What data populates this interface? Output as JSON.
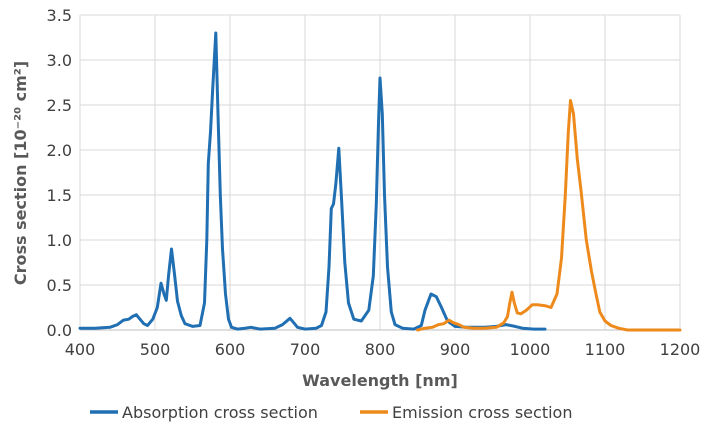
{
  "chart_data": {
    "type": "line",
    "xlabel": "Wavelength [nm]",
    "ylabel": "Cross section [10⁻²⁰ cm²]",
    "xlim": [
      400,
      1200
    ],
    "ylim": [
      0,
      3.5
    ],
    "x_ticks": [
      "400",
      "500",
      "600",
      "700",
      "800",
      "900",
      "1000",
      "1100",
      "1200"
    ],
    "y_ticks": [
      "0.0",
      "0.5",
      "1.0",
      "1.5",
      "2.0",
      "2.5",
      "3.0",
      "3.5"
    ],
    "grid": true,
    "legend_position": "bottom",
    "series": [
      {
        "name": "Absorption cross section",
        "color": "#1f6fb2",
        "points": [
          [
            400,
            0.02
          ],
          [
            420,
            0.02
          ],
          [
            440,
            0.03
          ],
          [
            450,
            0.06
          ],
          [
            458,
            0.11
          ],
          [
            465,
            0.12
          ],
          [
            470,
            0.15
          ],
          [
            475,
            0.17
          ],
          [
            478,
            0.14
          ],
          [
            485,
            0.07
          ],
          [
            490,
            0.05
          ],
          [
            497,
            0.12
          ],
          [
            503,
            0.25
          ],
          [
            508,
            0.52
          ],
          [
            512,
            0.4
          ],
          [
            515,
            0.33
          ],
          [
            518,
            0.6
          ],
          [
            522,
            0.9
          ],
          [
            526,
            0.62
          ],
          [
            530,
            0.32
          ],
          [
            535,
            0.16
          ],
          [
            540,
            0.07
          ],
          [
            550,
            0.04
          ],
          [
            560,
            0.05
          ],
          [
            566,
            0.3
          ],
          [
            569,
            1.0
          ],
          [
            571,
            1.85
          ],
          [
            574,
            2.2
          ],
          [
            577,
            2.7
          ],
          [
            581,
            3.3
          ],
          [
            584,
            2.4
          ],
          [
            587,
            1.5
          ],
          [
            590,
            0.9
          ],
          [
            594,
            0.4
          ],
          [
            598,
            0.12
          ],
          [
            602,
            0.03
          ],
          [
            610,
            0.01
          ],
          [
            620,
            0.02
          ],
          [
            628,
            0.03
          ],
          [
            640,
            0.01
          ],
          [
            660,
            0.02
          ],
          [
            670,
            0.06
          ],
          [
            680,
            0.13
          ],
          [
            685,
            0.08
          ],
          [
            690,
            0.03
          ],
          [
            700,
            0.01
          ],
          [
            715,
            0.02
          ],
          [
            722,
            0.05
          ],
          [
            728,
            0.2
          ],
          [
            732,
            0.7
          ],
          [
            735,
            1.35
          ],
          [
            738,
            1.4
          ],
          [
            741,
            1.62
          ],
          [
            745,
            2.02
          ],
          [
            749,
            1.4
          ],
          [
            753,
            0.75
          ],
          [
            758,
            0.3
          ],
          [
            765,
            0.12
          ],
          [
            775,
            0.1
          ],
          [
            785,
            0.22
          ],
          [
            791,
            0.6
          ],
          [
            795,
            1.4
          ],
          [
            798,
            2.3
          ],
          [
            800,
            2.8
          ],
          [
            803,
            2.4
          ],
          [
            806,
            1.5
          ],
          [
            810,
            0.7
          ],
          [
            815,
            0.2
          ],
          [
            820,
            0.06
          ],
          [
            830,
            0.02
          ],
          [
            845,
            0.01
          ],
          [
            855,
            0.05
          ],
          [
            860,
            0.22
          ],
          [
            868,
            0.4
          ],
          [
            875,
            0.37
          ],
          [
            882,
            0.25
          ],
          [
            890,
            0.1
          ],
          [
            900,
            0.04
          ],
          [
            915,
            0.03
          ],
          [
            940,
            0.03
          ],
          [
            955,
            0.04
          ],
          [
            968,
            0.06
          ],
          [
            980,
            0.04
          ],
          [
            990,
            0.02
          ],
          [
            1005,
            0.01
          ],
          [
            1020,
            0.01
          ]
        ]
      },
      {
        "name": "Emission cross section",
        "color": "#ee8a1b",
        "points": [
          [
            850,
            0.0
          ],
          [
            860,
            0.02
          ],
          [
            870,
            0.03
          ],
          [
            878,
            0.06
          ],
          [
            885,
            0.07
          ],
          [
            892,
            0.11
          ],
          [
            898,
            0.08
          ],
          [
            905,
            0.06
          ],
          [
            912,
            0.03
          ],
          [
            925,
            0.02
          ],
          [
            940,
            0.02
          ],
          [
            955,
            0.03
          ],
          [
            965,
            0.08
          ],
          [
            970,
            0.15
          ],
          [
            973,
            0.3
          ],
          [
            976,
            0.42
          ],
          [
            979,
            0.3
          ],
          [
            983,
            0.19
          ],
          [
            988,
            0.18
          ],
          [
            995,
            0.22
          ],
          [
            1003,
            0.28
          ],
          [
            1010,
            0.28
          ],
          [
            1020,
            0.27
          ],
          [
            1028,
            0.25
          ],
          [
            1036,
            0.4
          ],
          [
            1042,
            0.8
          ],
          [
            1047,
            1.5
          ],
          [
            1051,
            2.2
          ],
          [
            1054,
            2.55
          ],
          [
            1058,
            2.4
          ],
          [
            1063,
            1.9
          ],
          [
            1068,
            1.55
          ],
          [
            1075,
            1.0
          ],
          [
            1082,
            0.65
          ],
          [
            1088,
            0.4
          ],
          [
            1093,
            0.2
          ],
          [
            1100,
            0.1
          ],
          [
            1108,
            0.05
          ],
          [
            1118,
            0.02
          ],
          [
            1130,
            0.0
          ],
          [
            1150,
            0.0
          ],
          [
            1175,
            0.0
          ],
          [
            1200,
            0.0
          ]
        ]
      }
    ]
  }
}
